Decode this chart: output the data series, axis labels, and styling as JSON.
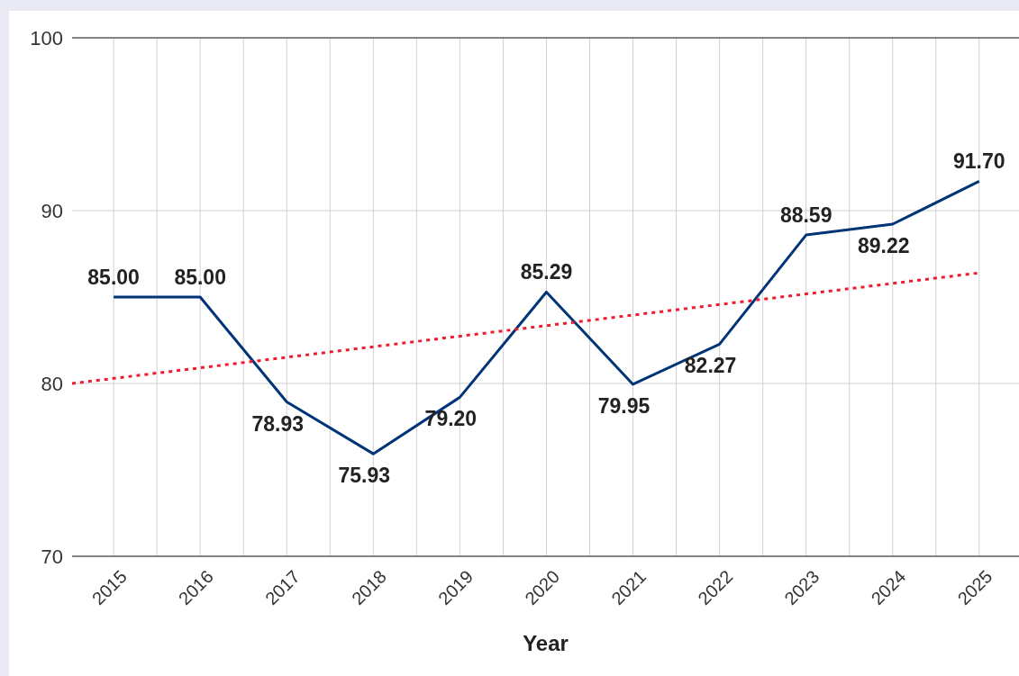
{
  "chart_data": {
    "type": "line",
    "xlabel": "Year",
    "x": [
      2015,
      2016,
      2017,
      2018,
      2019,
      2020,
      2021,
      2022,
      2023,
      2024,
      2025
    ],
    "series": [
      {
        "color": "#003478",
        "values": [
          85.0,
          85.0,
          78.93,
          75.93,
          79.2,
          85.29,
          79.95,
          82.27,
          88.59,
          89.22,
          91.7
        ],
        "value_labels": [
          "85.00",
          "85.00",
          "78.93",
          "75.93",
          "79.20",
          "85.29",
          "79.95",
          "82.27",
          "88.59",
          "89.22",
          "91.70"
        ]
      },
      {
        "type": "line",
        "color": "#ee1c2e",
        "line_style": "dotted",
        "x": [
          2014.52,
          2025
        ],
        "values": [
          80.0,
          86.4
        ]
      }
    ],
    "xlim": [
      2014.52,
      2025.46
    ],
    "xticks": [
      2015,
      {
        "value": 2015.5,
        "label": null
      },
      2016,
      {
        "value": 2016.5,
        "label": null
      },
      2017,
      {
        "value": 2017.5,
        "label": null
      },
      2018,
      {
        "value": 2018.5,
        "label": null
      },
      2019,
      {
        "value": 2019.5,
        "label": null
      },
      2020,
      {
        "value": 2020.5,
        "label": null
      },
      2021,
      {
        "value": 2021.5,
        "label": null
      },
      2022,
      {
        "value": 2022.5,
        "label": null
      },
      2023,
      {
        "value": 2023.5,
        "label": null
      },
      2024,
      {
        "value": 2024.5,
        "label": null
      },
      2025
    ],
    "ylim": [
      70,
      100
    ],
    "yticks": [
      70,
      80,
      90,
      100
    ],
    "grid": true,
    "marker": "none"
  }
}
